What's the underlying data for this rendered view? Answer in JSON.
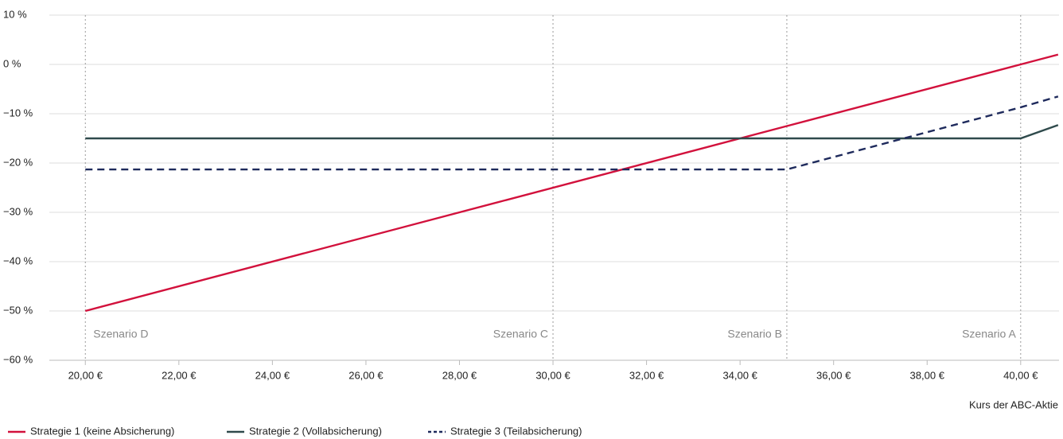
{
  "chart_data": {
    "type": "line",
    "x_label": "Kurs der ABC-Aktie",
    "x": [
      20,
      35,
      40,
      40.8
    ],
    "series": [
      {
        "name": "Strategie 1 (keine Absicherung)",
        "color": "#d2113c",
        "dash": "solid",
        "values": [
          -50,
          -12.5,
          0,
          2
        ]
      },
      {
        "name": "Strategie 2 (Vollabsicherung)",
        "color": "#2f4a4c",
        "dash": "solid",
        "values": [
          -15,
          -15,
          -15,
          -12.3
        ]
      },
      {
        "name": "Strategie 3 (Teilabsicherung)",
        "color": "#1e2a5c",
        "dash": "dashed",
        "values": [
          -21.3,
          -21.3,
          -8.7,
          -6.5
        ]
      }
    ],
    "scenarios": [
      {
        "x": 20,
        "label": "Szenario D"
      },
      {
        "x": 30,
        "label": "Szenario C"
      },
      {
        "x": 35,
        "label": "Szenario B"
      },
      {
        "x": 40,
        "label": "Szenario A"
      }
    ],
    "xlim": [
      19.23,
      40.82
    ],
    "ylim": [
      -60,
      10
    ],
    "xticks": [
      {
        "value": 20,
        "label": "20,00 €"
      },
      {
        "value": 22,
        "label": "22,00 €"
      },
      {
        "value": 24,
        "label": "24,00 €"
      },
      {
        "value": 26,
        "label": "26,00 €"
      },
      {
        "value": 28,
        "label": "28,00 €"
      },
      {
        "value": 30,
        "label": "30,00 €"
      },
      {
        "value": 32,
        "label": "32,00 €"
      },
      {
        "value": 34,
        "label": "34,00 €"
      },
      {
        "value": 36,
        "label": "36,00 €"
      },
      {
        "value": 38,
        "label": "38,00 €"
      },
      {
        "value": 40,
        "label": "40,00 €"
      }
    ],
    "yticks": [
      {
        "value": 10,
        "label": "10 %"
      },
      {
        "value": 0,
        "label": "0 %"
      },
      {
        "value": -10,
        "label": "−10 %"
      },
      {
        "value": -20,
        "label": "−20 %"
      },
      {
        "value": -30,
        "label": "−30 %"
      },
      {
        "value": -40,
        "label": "−40 %"
      },
      {
        "value": -50,
        "label": "−50 %"
      },
      {
        "value": -60,
        "label": "−60 %"
      }
    ],
    "grid": true
  }
}
